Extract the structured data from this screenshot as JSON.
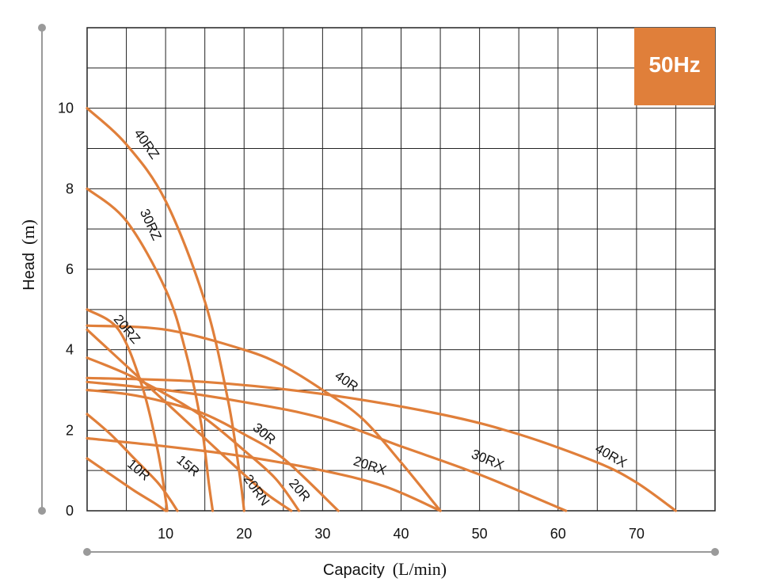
{
  "chart_data": {
    "type": "line",
    "title": "",
    "badge": "50Hz",
    "xlabel": "Capacity",
    "xlabel_unit": "(L/min)",
    "ylabel": "Head",
    "ylabel_unit": "(m)",
    "xlim": [
      0,
      80
    ],
    "ylim": [
      0,
      12
    ],
    "x_ticks": [
      10,
      20,
      30,
      40,
      50,
      60,
      70
    ],
    "y_ticks": [
      0,
      2,
      4,
      6,
      8,
      10
    ],
    "grid": true,
    "colors": {
      "curve": "#e07f3a",
      "badge": "#e07f3a",
      "grid": "#222222",
      "axis_line": "#9a9a9a"
    },
    "series": [
      {
        "name": "40RZ",
        "x": [
          0,
          5,
          10,
          15,
          18,
          19.5,
          20
        ],
        "y": [
          10,
          9.1,
          7.7,
          5.2,
          2.7,
          0.8,
          0
        ]
      },
      {
        "name": "30RZ",
        "x": [
          0,
          5,
          10,
          12.5,
          14.5,
          15.5,
          16
        ],
        "y": [
          8,
          7.2,
          5.5,
          4.0,
          2.2,
          0.7,
          0
        ]
      },
      {
        "name": "20RZ",
        "x": [
          0,
          4,
          7,
          9,
          10,
          10.2
        ],
        "y": [
          5,
          4.5,
          3.1,
          1.5,
          0.3,
          0
        ]
      },
      {
        "name": "40R",
        "x": [
          0,
          10,
          20,
          25,
          30,
          35,
          40,
          45
        ],
        "y": [
          4.6,
          4.5,
          4.0,
          3.6,
          3.0,
          2.3,
          1.2,
          0
        ]
      },
      {
        "name": "30R",
        "x": [
          0,
          5,
          10,
          15,
          20,
          23,
          26
        ],
        "y": [
          4.5,
          3.6,
          2.7,
          1.8,
          0.9,
          0.4,
          0
        ]
      },
      {
        "name": "20R",
        "x": [
          0,
          5,
          10,
          15,
          20,
          24,
          27
        ],
        "y": [
          3.8,
          3.4,
          2.9,
          2.3,
          1.5,
          0.8,
          0
        ]
      },
      {
        "name": "20RN",
        "x": [
          0,
          5,
          10,
          15,
          20,
          25,
          32
        ],
        "y": [
          3.0,
          2.9,
          2.7,
          2.4,
          1.9,
          1.3,
          0
        ]
      },
      {
        "name": "15R",
        "x": [
          0,
          3,
          6,
          9,
          10.5,
          11.5
        ],
        "y": [
          2.4,
          1.9,
          1.3,
          0.7,
          0.3,
          0
        ]
      },
      {
        "name": "10R",
        "x": [
          0,
          3,
          6,
          8.5,
          10
        ],
        "y": [
          1.3,
          0.9,
          0.5,
          0.2,
          0
        ]
      },
      {
        "name": "20RX",
        "x": [
          0,
          10,
          20,
          30,
          38,
          45
        ],
        "y": [
          1.8,
          1.6,
          1.35,
          1.0,
          0.6,
          0
        ]
      },
      {
        "name": "30RX",
        "x": [
          0,
          10,
          20,
          30,
          40,
          50,
          61
        ],
        "y": [
          3.2,
          3.0,
          2.7,
          2.3,
          1.6,
          0.9,
          0
        ]
      },
      {
        "name": "40RX",
        "x": [
          0,
          15,
          30,
          45,
          55,
          65,
          70,
          75
        ],
        "y": [
          3.3,
          3.2,
          2.9,
          2.4,
          1.9,
          1.2,
          0.7,
          0
        ]
      }
    ],
    "labels": [
      {
        "text": "40RZ",
        "x": 7.5,
        "y": 9.1,
        "angle": 55
      },
      {
        "text": "30RZ",
        "x": 8.0,
        "y": 7.1,
        "angle": 65
      },
      {
        "text": "20RZ",
        "x": 5.0,
        "y": 4.5,
        "angle": 50
      },
      {
        "text": "40R",
        "x": 33.0,
        "y": 3.2,
        "angle": 35
      },
      {
        "text": "30R",
        "x": 22.5,
        "y": 1.9,
        "angle": 40
      },
      {
        "text": "20R",
        "x": 27.0,
        "y": 0.5,
        "angle": 50
      },
      {
        "text": "20RN",
        "x": 21.5,
        "y": 0.5,
        "angle": 55
      },
      {
        "text": "15R",
        "x": 12.8,
        "y": 1.1,
        "angle": 40
      },
      {
        "text": "10R",
        "x": 6.5,
        "y": 1.0,
        "angle": 40
      },
      {
        "text": "20RX",
        "x": 36.0,
        "y": 1.1,
        "angle": 18
      },
      {
        "text": "30RX",
        "x": 51.0,
        "y": 1.25,
        "angle": 22
      },
      {
        "text": "40RX",
        "x": 66.7,
        "y": 1.35,
        "angle": 30
      }
    ]
  }
}
